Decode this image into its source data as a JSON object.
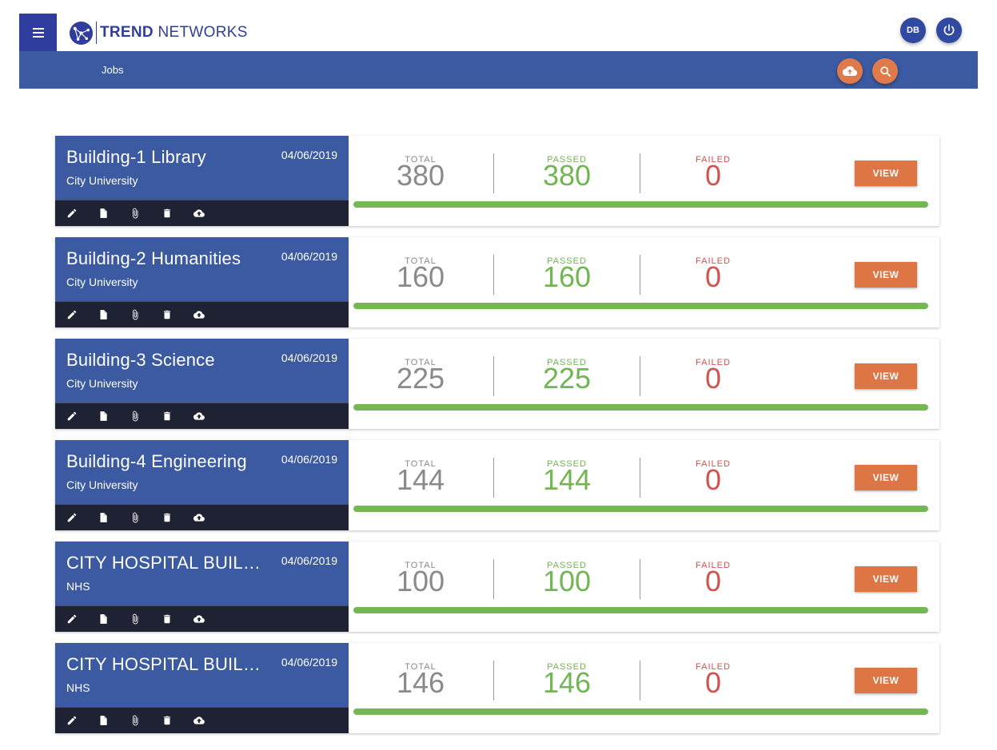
{
  "brand": {
    "name_bold": "TREND",
    "name_rest": " NETWORKS"
  },
  "header": {
    "user_initials": "DB"
  },
  "breadcrumb": {
    "label": "Jobs"
  },
  "colors": {
    "primary": "#3b5aa1",
    "dark_primary": "#2f3e9e",
    "accent": "#dd7545",
    "passed": "#72b553",
    "failed": "#d2524e",
    "toolbar": "#1f2233"
  },
  "labels": {
    "total": "TOTAL",
    "passed": "PASSED",
    "failed": "FAILED",
    "view": "VIEW"
  },
  "toolbar_icons": [
    "edit-icon",
    "document-icon",
    "attachment-icon",
    "delete-icon",
    "cloud-upload-icon"
  ],
  "jobs": [
    {
      "title": "Building-1 Library",
      "client": "City University",
      "date": "04/06/2019",
      "total": "380",
      "passed": "380",
      "failed": "0",
      "pass_ratio": 1.0
    },
    {
      "title": "Building-2 Humanities",
      "client": "City University",
      "date": "04/06/2019",
      "total": "160",
      "passed": "160",
      "failed": "0",
      "pass_ratio": 1.0
    },
    {
      "title": "Building-3 Science",
      "client": "City University",
      "date": "04/06/2019",
      "total": "225",
      "passed": "225",
      "failed": "0",
      "pass_ratio": 1.0
    },
    {
      "title": "Building-4 Engineering",
      "client": "City University",
      "date": "04/06/2019",
      "total": "144",
      "passed": "144",
      "failed": "0",
      "pass_ratio": 1.0
    },
    {
      "title": "CITY HOSPITAL BUILDI…",
      "client": "NHS",
      "date": "04/06/2019",
      "total": "100",
      "passed": "100",
      "failed": "0",
      "pass_ratio": 1.0
    },
    {
      "title": "CITY HOSPITAL BUILDI…",
      "client": "NHS",
      "date": "04/06/2019",
      "total": "146",
      "passed": "146",
      "failed": "0",
      "pass_ratio": 1.0
    }
  ]
}
